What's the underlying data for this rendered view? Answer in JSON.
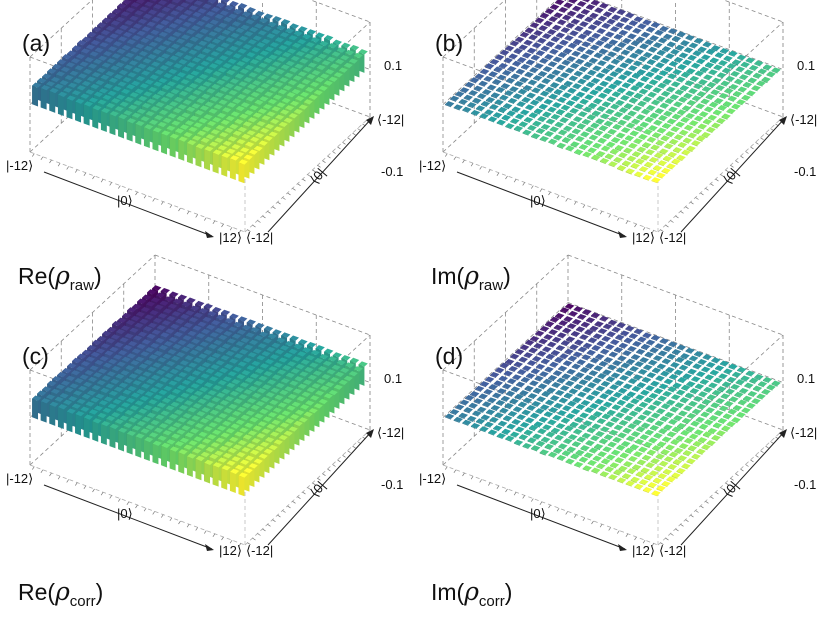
{
  "chart_data": [
    {
      "type": "bar3d",
      "panel": "(a)",
      "caption": {
        "prefix": "Re(",
        "symbol": "ρ",
        "subscript": "raw",
        "suffix": ")"
      },
      "x_axis": {
        "tick_start": "|-12⟩",
        "tick_mid": "|0⟩",
        "tick_end": "|12⟩"
      },
      "y_axis": {
        "tick_start": "⟨-12|",
        "tick_mid": "⟨0|",
        "tick_end": "⟨-12|"
      },
      "z_axis": {
        "top": "0.1",
        "bottom": "-0.1"
      },
      "zlim": [
        -0.1,
        0.1
      ],
      "matrix_size": 25,
      "value_description": "uniform real part ≈ 0.04 for all 25×25 elements",
      "value": 0.04
    },
    {
      "type": "bar3d",
      "panel": "(b)",
      "caption": {
        "prefix": "Im(",
        "symbol": "ρ",
        "subscript": "raw",
        "suffix": ")"
      },
      "x_axis": {
        "tick_start": "|-12⟩",
        "tick_mid": "|0⟩",
        "tick_end": "|12⟩"
      },
      "y_axis": {
        "tick_start": "⟨-12|",
        "tick_mid": "⟨0|",
        "tick_end": "⟨-12|"
      },
      "z_axis": {
        "top": "0.1",
        "bottom": "-0.1"
      },
      "zlim": [
        -0.1,
        0.1
      ],
      "matrix_size": 25,
      "value_description": "imaginary part ≈ 0 (small noise about ±0.002)",
      "value": 0.0
    },
    {
      "type": "bar3d",
      "panel": "(c)",
      "caption": {
        "prefix": "Re(",
        "symbol": "ρ",
        "subscript": "corr",
        "suffix": ")"
      },
      "x_axis": {
        "tick_start": "|-12⟩",
        "tick_mid": "|0⟩",
        "tick_end": "|12⟩"
      },
      "y_axis": {
        "tick_start": "⟨-12|",
        "tick_mid": "⟨0|",
        "tick_end": "⟨-12|"
      },
      "z_axis": {
        "top": "0.1",
        "bottom": "-0.1"
      },
      "zlim": [
        -0.1,
        0.1
      ],
      "matrix_size": 25,
      "value_description": "uniform real part ≈ 0.04 for all 25×25 elements",
      "value": 0.04
    },
    {
      "type": "bar3d",
      "panel": "(d)",
      "caption": {
        "prefix": "Im(",
        "symbol": "ρ",
        "subscript": "corr",
        "suffix": ")"
      },
      "x_axis": {
        "tick_start": "|-12⟩",
        "tick_mid": "|0⟩",
        "tick_end": "|12⟩"
      },
      "y_axis": {
        "tick_start": "⟨-12|",
        "tick_mid": "⟨0|",
        "tick_end": "⟨-12|"
      },
      "z_axis": {
        "top": "0.1",
        "bottom": "-0.1"
      },
      "zlim": [
        -0.1,
        0.1
      ],
      "matrix_size": 25,
      "value_description": "imaginary part ≈ 0 (small noise about ±0.002)",
      "value": 0.0
    }
  ],
  "colormap": [
    "#440154",
    "#3b528b",
    "#21918c",
    "#5ec962",
    "#fde725"
  ]
}
